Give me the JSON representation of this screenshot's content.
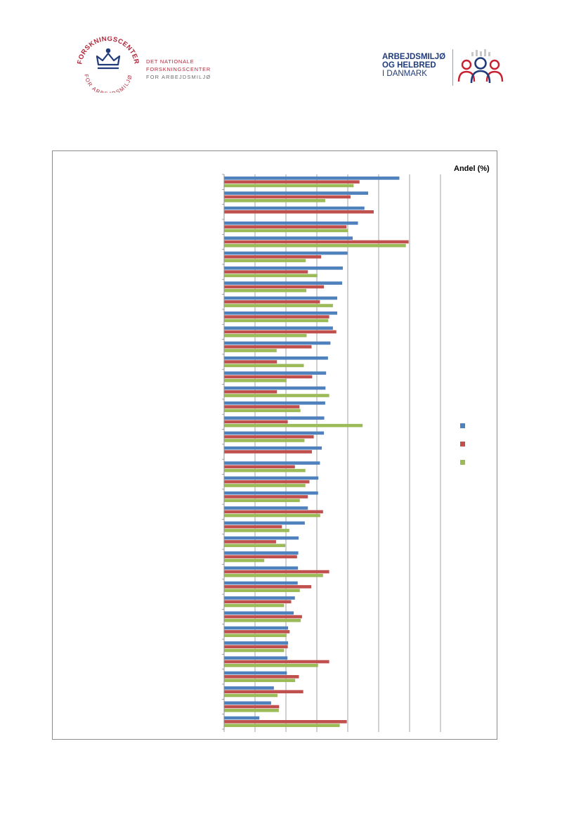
{
  "header": {
    "left_logo": {
      "seal_text_top": "FORSKNINGSCENTER",
      "seal_text_bottom": "FOR ARBEJDSMILJØ",
      "name_line1": "DET NATIONALE FORSKNINGSCENTER",
      "name_line2": "FOR ARBEJDSMILJØ"
    },
    "right_logo": {
      "line1": "ARBEJDSMILJØ",
      "line2": "OG HELBRED",
      "line3": "I DANMARK"
    }
  },
  "colors": {
    "series1": "#4f81bd",
    "series2": "#c0504d",
    "series3": "#9bbb59",
    "gridline": "#8c8c8c",
    "brand_red": "#b3263a",
    "brand_blue": "#1f3b7a"
  },
  "chart_data": {
    "type": "bar",
    "orientation": "horizontal",
    "unit_label": "Andel (%)",
    "grid": true,
    "legend_position": "right",
    "categories": [
      "",
      "",
      "",
      "",
      "",
      "",
      "",
      "",
      "",
      "",
      "",
      "",
      "",
      "",
      "",
      "",
      "",
      "",
      "",
      "",
      "",
      "",
      "",
      "",
      "",
      "",
      "",
      "",
      "",
      "",
      "",
      "",
      "",
      "",
      "",
      "",
      ""
    ],
    "series": [
      {
        "name": "",
        "color": "#4f81bd",
        "values": [
          56.7,
          46.6,
          45.4,
          43.3,
          41.6,
          39.9,
          38.4,
          38.2,
          36.6,
          36.6,
          35.2,
          34.4,
          33.6,
          33.0,
          32.8,
          32.7,
          32.4,
          32.3,
          31.6,
          31.0,
          30.5,
          30.4,
          27.1,
          26.1,
          24.1,
          24.0,
          23.9,
          23.8,
          22.9,
          22.5,
          20.7,
          20.7,
          20.5,
          20.3,
          16.1,
          15.2,
          11.4
        ]
      },
      {
        "name": "",
        "color": "#c0504d",
        "values": [
          43.8,
          40.9,
          48.4,
          39.6,
          59.7,
          31.4,
          27.1,
          32.3,
          31.0,
          34.0,
          36.3,
          28.3,
          17.1,
          28.5,
          17.1,
          24.4,
          20.6,
          29.0,
          28.4,
          22.9,
          27.6,
          27.1,
          32.0,
          18.7,
          16.8,
          23.6,
          34.0,
          28.2,
          21.7,
          25.2,
          21.2,
          20.6,
          34.0,
          24.2,
          25.6,
          17.8,
          39.7
        ]
      },
      {
        "name": "",
        "color": "#9bbb59",
        "values": [
          41.9,
          32.7,
          0,
          40.1,
          58.8,
          26.4,
          30.2,
          26.6,
          35.2,
          33.7,
          26.7,
          17.0,
          25.8,
          20.2,
          34.0,
          24.7,
          44.8,
          26.0,
          0,
          26.3,
          26.3,
          24.5,
          31.1,
          21.1,
          19.8,
          13.0,
          32.0,
          24.5,
          19.4,
          24.8,
          20.2,
          19.4,
          30.4,
          23.0,
          17.3,
          17.7,
          37.4
        ]
      }
    ],
    "xlim": [
      0,
      70
    ],
    "x_tick_step": 10
  }
}
